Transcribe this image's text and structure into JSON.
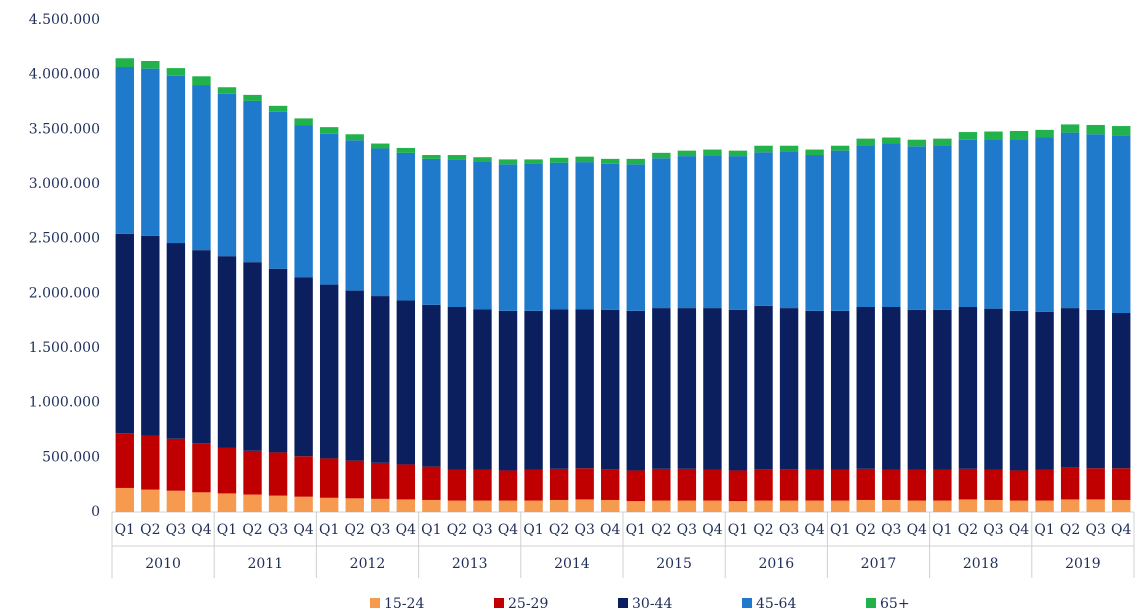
{
  "chart_data": {
    "type": "stacked_bar",
    "categories": [
      "Q1",
      "Q2",
      "Q3",
      "Q4",
      "Q1",
      "Q2",
      "Q3",
      "Q4",
      "Q1",
      "Q2",
      "Q3",
      "Q4",
      "Q1",
      "Q2",
      "Q3",
      "Q4",
      "Q1",
      "Q2",
      "Q3",
      "Q4",
      "Q1",
      "Q2",
      "Q3",
      "Q4",
      "Q1",
      "Q2",
      "Q3",
      "Q4",
      "Q1",
      "Q2",
      "Q3",
      "Q4",
      "Q1",
      "Q2",
      "Q3",
      "Q4",
      "Q1",
      "Q2",
      "Q3",
      "Q4"
    ],
    "year_groups": [
      "2010",
      "2011",
      "2012",
      "2013",
      "2014",
      "2015",
      "2016",
      "2017",
      "2018",
      "2019"
    ],
    "series": [
      {
        "name": "15-24",
        "color": "#f59a4f",
        "values": [
          220000,
          205000,
          195000,
          180000,
          170000,
          160000,
          150000,
          140000,
          130000,
          125000,
          120000,
          115000,
          110000,
          105000,
          105000,
          105000,
          105000,
          110000,
          115000,
          110000,
          100000,
          105000,
          105000,
          105000,
          100000,
          105000,
          105000,
          105000,
          105000,
          110000,
          110000,
          105000,
          105000,
          115000,
          110000,
          105000,
          105000,
          115000,
          115000,
          110000
        ]
      },
      {
        "name": "25-29",
        "color": "#c00000",
        "values": [
          500000,
          495000,
          475000,
          450000,
          420000,
          400000,
          395000,
          370000,
          360000,
          345000,
          330000,
          320000,
          305000,
          280000,
          280000,
          275000,
          280000,
          285000,
          285000,
          280000,
          280000,
          290000,
          290000,
          280000,
          280000,
          285000,
          285000,
          280000,
          280000,
          285000,
          275000,
          280000,
          280000,
          280000,
          275000,
          275000,
          280000,
          290000,
          285000,
          290000
        ]
      },
      {
        "name": "30-44",
        "color": "#0b1f5e",
        "values": [
          1825000,
          1825000,
          1790000,
          1765000,
          1750000,
          1725000,
          1680000,
          1635000,
          1590000,
          1555000,
          1525000,
          1500000,
          1480000,
          1490000,
          1470000,
          1460000,
          1455000,
          1460000,
          1455000,
          1460000,
          1460000,
          1470000,
          1470000,
          1480000,
          1470000,
          1495000,
          1475000,
          1455000,
          1455000,
          1480000,
          1490000,
          1465000,
          1465000,
          1480000,
          1475000,
          1460000,
          1445000,
          1460000,
          1450000,
          1420000
        ]
      },
      {
        "name": "45-64",
        "color": "#1f7acb",
        "values": [
          1525000,
          1530000,
          1530000,
          1510000,
          1485000,
          1475000,
          1435000,
          1390000,
          1380000,
          1375000,
          1350000,
          1350000,
          1335000,
          1345000,
          1350000,
          1340000,
          1350000,
          1340000,
          1345000,
          1335000,
          1340000,
          1370000,
          1390000,
          1395000,
          1405000,
          1405000,
          1435000,
          1425000,
          1465000,
          1480000,
          1495000,
          1495000,
          1505000,
          1530000,
          1550000,
          1570000,
          1595000,
          1605000,
          1605000,
          1625000
        ]
      },
      {
        "name": "65+",
        "color": "#21b24b",
        "values": [
          80000,
          70000,
          70000,
          80000,
          60000,
          55000,
          55000,
          65000,
          60000,
          55000,
          45000,
          45000,
          35000,
          45000,
          40000,
          45000,
          35000,
          45000,
          50000,
          45000,
          50000,
          50000,
          50000,
          55000,
          50000,
          60000,
          50000,
          50000,
          45000,
          60000,
          55000,
          60000,
          60000,
          70000,
          70000,
          75000,
          70000,
          75000,
          85000,
          85000
        ]
      }
    ],
    "ylim": [
      0,
      4500000
    ],
    "yticks": [
      0,
      {
        "value": 500000,
        "label": "500.000"
      },
      {
        "value": 1000000,
        "label": "1.000.000"
      },
      {
        "value": 1500000,
        "label": "1.500.000"
      },
      {
        "value": 2000000,
        "label": "2.000.000"
      },
      {
        "value": 2500000,
        "label": "2.500.000"
      },
      {
        "value": 3000000,
        "label": "3.000.000"
      },
      {
        "value": 3500000,
        "label": "3.500.000"
      },
      {
        "value": 4000000,
        "label": "4.000.000"
      },
      {
        "value": 4500000,
        "label": "4.500.000"
      }
    ],
    "grid": false
  }
}
